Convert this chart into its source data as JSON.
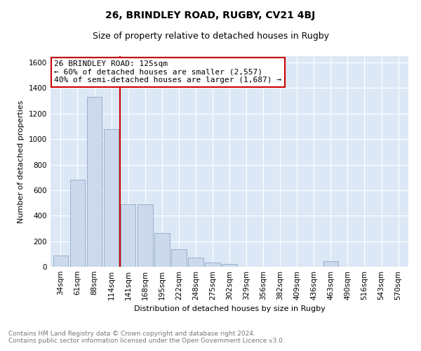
{
  "title": "26, BRINDLEY ROAD, RUGBY, CV21 4BJ",
  "subtitle": "Size of property relative to detached houses in Rugby",
  "xlabel": "Distribution of detached houses by size in Rugby",
  "ylabel": "Number of detached properties",
  "categories": [
    "34sqm",
    "61sqm",
    "88sqm",
    "114sqm",
    "141sqm",
    "168sqm",
    "195sqm",
    "222sqm",
    "248sqm",
    "275sqm",
    "302sqm",
    "329sqm",
    "356sqm",
    "382sqm",
    "409sqm",
    "436sqm",
    "463sqm",
    "490sqm",
    "516sqm",
    "543sqm",
    "570sqm"
  ],
  "values": [
    90,
    680,
    1330,
    1080,
    490,
    490,
    265,
    135,
    70,
    35,
    20,
    0,
    0,
    0,
    0,
    0,
    45,
    0,
    0,
    0,
    0
  ],
  "bar_color": "#ccd9ed",
  "bar_edge_color": "#9ab0cc",
  "vline_x_index": 3,
  "vline_color": "#cc0000",
  "annotation_text": "26 BRINDLEY ROAD: 125sqm\n← 60% of detached houses are smaller (2,557)\n40% of semi-detached houses are larger (1,687) →",
  "annotation_box_facecolor": "white",
  "annotation_box_edgecolor": "#cc0000",
  "ylim": [
    0,
    1650
  ],
  "yticks": [
    0,
    200,
    400,
    600,
    800,
    1000,
    1200,
    1400,
    1600
  ],
  "bg_color": "#dce8f5",
  "footer_line1": "Contains HM Land Registry data © Crown copyright and database right 2024.",
  "footer_line2": "Contains public sector information licensed under the Open Government Licence v3.0.",
  "title_fontsize": 10,
  "subtitle_fontsize": 9,
  "axis_label_fontsize": 8,
  "tick_fontsize": 7.5,
  "annotation_fontsize": 8
}
